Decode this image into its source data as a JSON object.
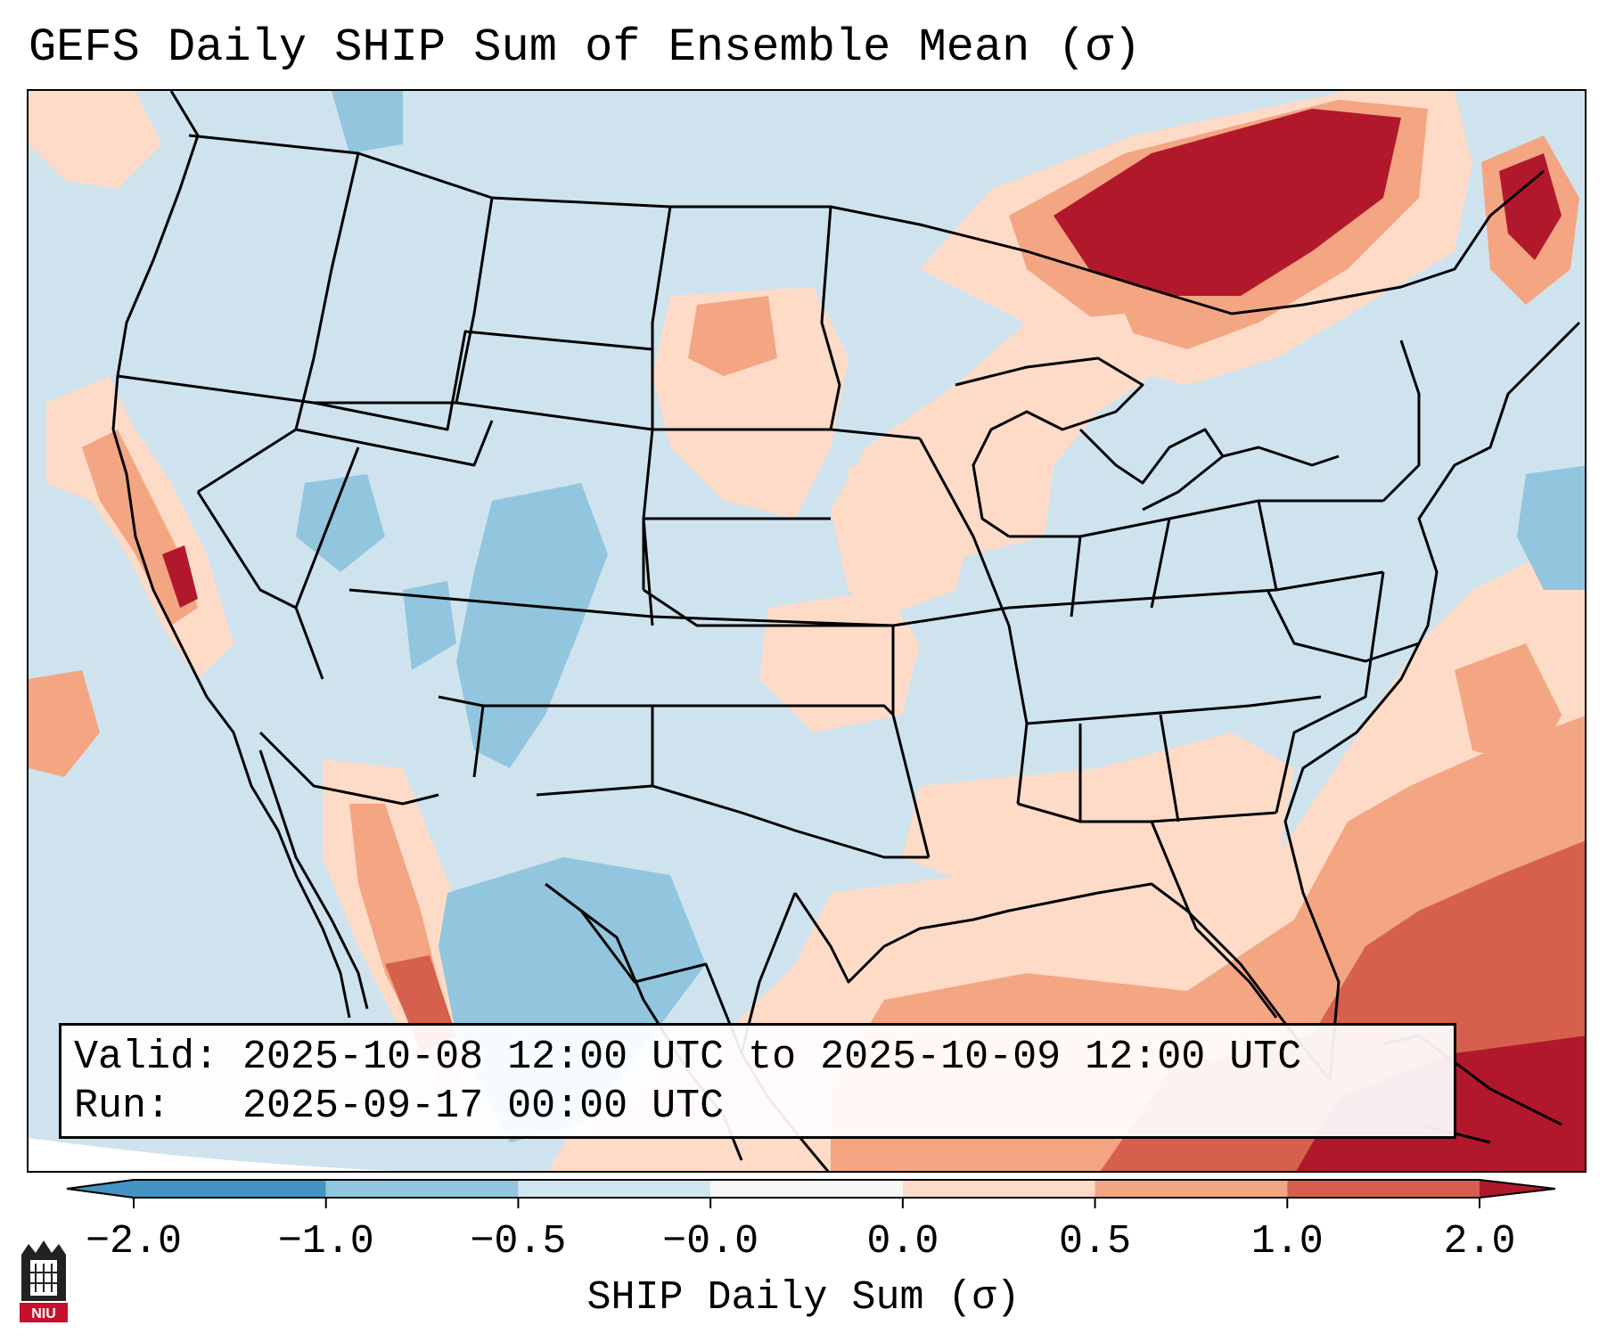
{
  "title": "GEFS Daily SHIP Sum of Ensemble Mean (σ)",
  "info": {
    "valid_line": "Valid: 2025-10-08 12:00 UTC to 2025-10-09 12:00 UTC",
    "run_line": "Run:   2025-09-17 00:00 UTC"
  },
  "colorbar": {
    "title": "SHIP Daily Sum (σ)",
    "ticks": [
      "−2.0",
      "−1.0",
      "−0.5",
      "−0.0",
      "0.0",
      "0.5",
      "1.0",
      "2.0"
    ],
    "colors": [
      "#4393c3",
      "#92c5de",
      "#d1e5f0",
      "#f7f7f7",
      "#fddbc7",
      "#f4a582",
      "#d6604d",
      "#b2182b"
    ]
  },
  "logo": {
    "text": "NIU",
    "color": "#c8102e"
  }
}
